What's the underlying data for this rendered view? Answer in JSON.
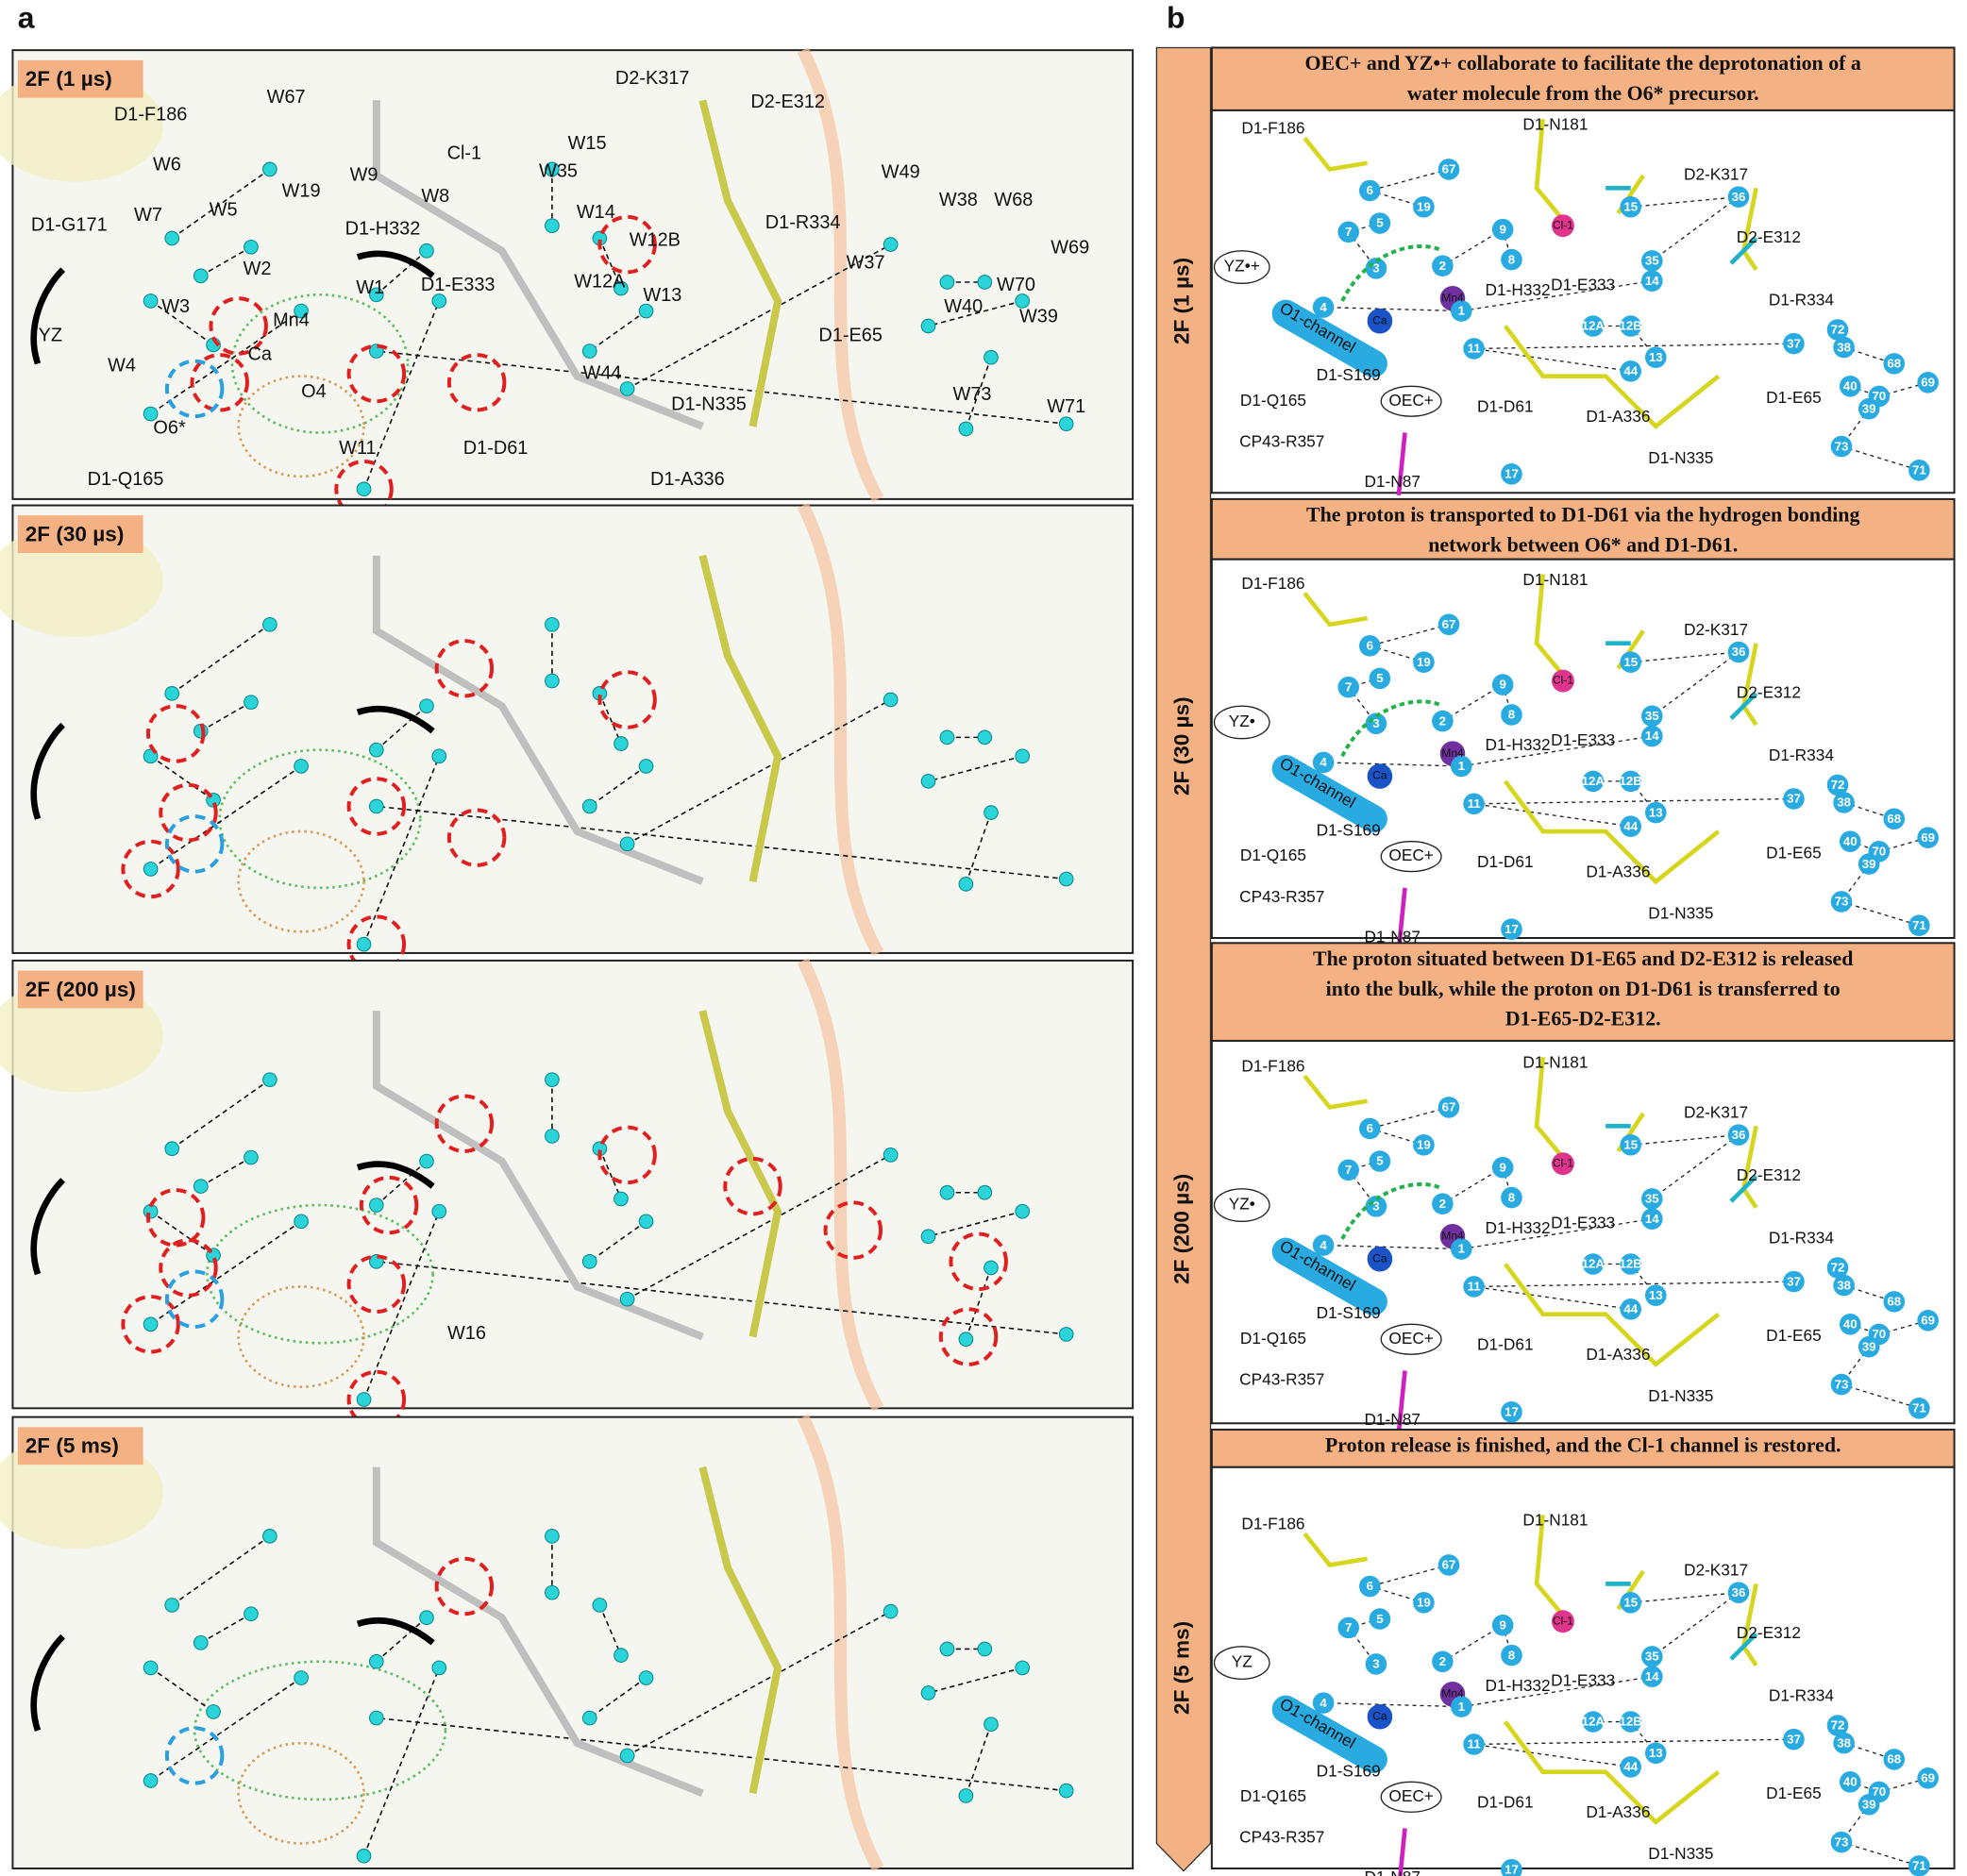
{
  "times": [
    "2F (1 µs)",
    "2F (30 µs)",
    "2F (200 µs)",
    "2F (5 ms)"
  ],
  "panel_a": {
    "label": "a",
    "row1_labels": [
      "W67",
      "D1-F186",
      "W6",
      "W19",
      "W5",
      "W7",
      "D1-G171",
      "W3",
      "W2",
      "YZ",
      "W4",
      "Ca",
      "Mn4",
      "O4",
      "O6*",
      "W11",
      "D1-Q165",
      "Cl-1",
      "W15",
      "W35",
      "W9",
      "W8",
      "W14",
      "D1-H332",
      "W12B",
      "W1",
      "D1-E333",
      "W12A",
      "W13",
      "W44",
      "D1-D61",
      "D1-N335",
      "D1-A336",
      "D2-K317",
      "D2-E312",
      "D1-R334",
      "W49",
      "W38",
      "W68",
      "W69",
      "W37",
      "W70",
      "W40",
      "W39",
      "D1-E65",
      "W73",
      "W71"
    ],
    "row3_labels": [
      "W16"
    ]
  },
  "panel_b": {
    "label": "b",
    "steps": [
      {
        "caption": [
          "OEC+ and YZ•+ collaborate to facilitate the deprotonation of a",
          "water molecule from the O6* precursor."
        ],
        "yz": "YZ•+"
      },
      {
        "caption": [
          "The proton is transported to D1-D61 via the hydrogen bonding",
          "network between O6* and D1-D61."
        ],
        "yz": "YZ•"
      },
      {
        "caption": [
          "The proton situated between D1-E65 and D2-E312 is released",
          "into the bulk, while the proton on D1-D61 is transferred to",
          "D1-E65-D2-E312."
        ],
        "yz": "YZ•"
      },
      {
        "caption": [
          "Proton release is finished, and the Cl-1 channel is restored."
        ],
        "yz": "YZ"
      }
    ],
    "labels": [
      "D1-F186",
      "D1-N181",
      "D2-K317",
      "D2-E312",
      "D1-H332",
      "D1-E333",
      "D1-R334",
      "D1-Q165",
      "D1-S169",
      "OEC+",
      "D1-D61",
      "D1-A336",
      "D1-E65",
      "CP43-R357",
      "D1-N87",
      "D1-N335",
      "O1-channel",
      "Ca",
      "Mn4",
      "Cl-1"
    ],
    "waters": [
      "67",
      "6",
      "19",
      "5",
      "7",
      "3",
      "2",
      "9",
      "8",
      "15",
      "36",
      "35",
      "14",
      "1",
      "4",
      "12A",
      "12B",
      "13",
      "44",
      "11",
      "37",
      "72",
      "38",
      "68",
      "40",
      "70",
      "69",
      "39",
      "73",
      "71",
      "17"
    ]
  }
}
